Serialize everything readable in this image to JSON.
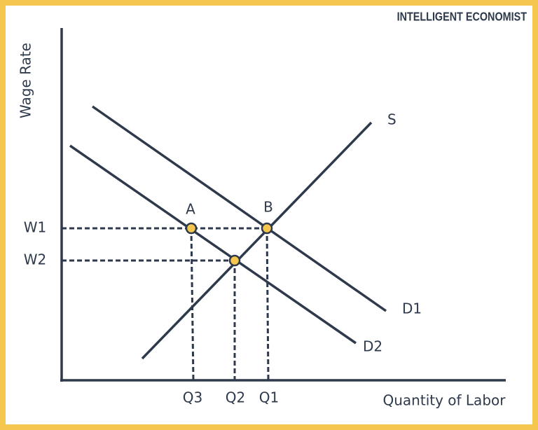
{
  "brand": "INTELLIGENT ECONOMIST",
  "axes": {
    "y_label": "Wage Rate",
    "x_label": "Quantity of Labor"
  },
  "curves": {
    "supply": "S",
    "demand1": "D1",
    "demand2": "D2"
  },
  "points": {
    "a": "A",
    "b": "B"
  },
  "wages": [
    "W1",
    "W2"
  ],
  "quantities": [
    "Q3",
    "Q2",
    "Q1"
  ]
}
